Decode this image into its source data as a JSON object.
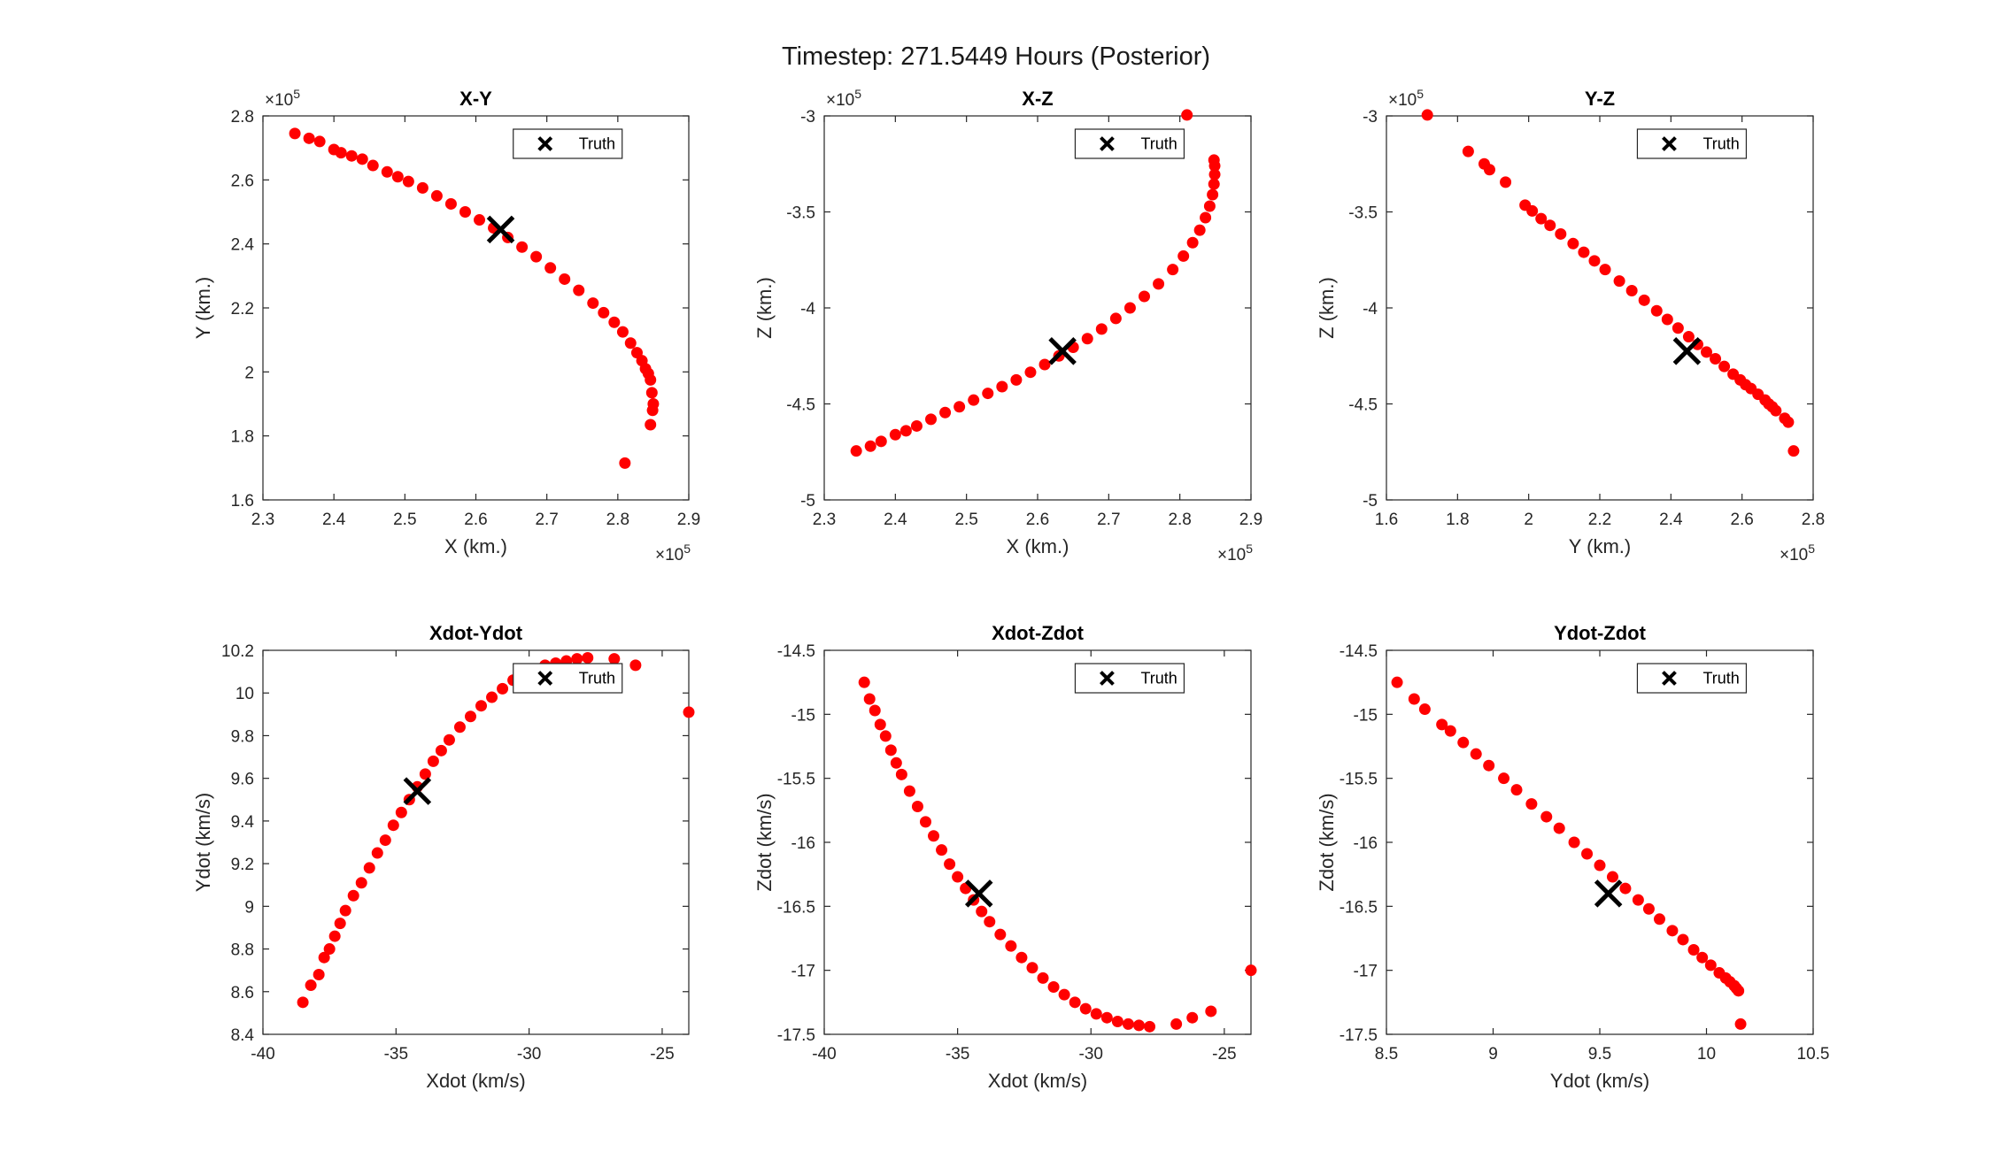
{
  "figure": {
    "title": "Timestep: 271.5449 Hours (Posterior)"
  },
  "colors": {
    "points": "#ff0000",
    "truth": "#000000",
    "axis": "#262626"
  },
  "chart_data": [
    {
      "type": "scatter",
      "title": "X-Y",
      "xlabel": "X (km.)",
      "ylabel": "Y (km.)",
      "xlim": [
        230000,
        290000
      ],
      "ylim": [
        160000,
        280000
      ],
      "xticks": [
        230000,
        240000,
        250000,
        260000,
        270000,
        280000,
        290000
      ],
      "xtick_labels": [
        "2.3",
        "2.4",
        "2.5",
        "2.6",
        "2.7",
        "2.8",
        "2.9"
      ],
      "yticks": [
        160000,
        180000,
        200000,
        220000,
        240000,
        260000,
        280000
      ],
      "ytick_labels": [
        "1.6",
        "1.8",
        "2",
        "2.2",
        "2.4",
        "2.6",
        "2.8"
      ],
      "x_exponent": "×10",
      "x_exponent_power": "5",
      "y_exponent": "×10",
      "y_exponent_power": "5",
      "legend": {
        "label": "Truth",
        "location": "top-right"
      },
      "truth": {
        "x": 263500,
        "y": 244500
      },
      "series": [
        {
          "x": [
            234500,
            236500,
            238000,
            240000,
            241000,
            242500,
            244000,
            245500,
            247500,
            249000,
            250500,
            252500,
            254500,
            256500,
            258500,
            260500,
            262500,
            264500,
            266500,
            268500,
            270500,
            272500,
            274500,
            276500,
            278000,
            279500,
            280700,
            281800,
            282700,
            283400,
            283900,
            284300,
            284600,
            284800,
            285000,
            284900,
            284600,
            281000
          ],
          "y": [
            274500,
            273000,
            272000,
            269500,
            268500,
            267500,
            266500,
            264500,
            262500,
            261000,
            259500,
            257500,
            255000,
            252500,
            250000,
            247500,
            245000,
            242000,
            239000,
            236000,
            232500,
            229000,
            225500,
            221500,
            218500,
            215500,
            212500,
            209000,
            206000,
            203500,
            201000,
            199500,
            197500,
            193500,
            190000,
            188000,
            183500,
            171500
          ]
        }
      ]
    },
    {
      "type": "scatter",
      "title": "X-Z",
      "xlabel": "X (km.)",
      "ylabel": "Z (km.)",
      "xlim": [
        230000,
        290000
      ],
      "ylim": [
        -500000,
        -300000
      ],
      "xticks": [
        230000,
        240000,
        250000,
        260000,
        270000,
        280000,
        290000
      ],
      "xtick_labels": [
        "2.3",
        "2.4",
        "2.5",
        "2.6",
        "2.7",
        "2.8",
        "2.9"
      ],
      "yticks": [
        -500000,
        -450000,
        -400000,
        -350000,
        -300000
      ],
      "ytick_labels": [
        "-5",
        "-4.5",
        "-4",
        "-3.5",
        "-3"
      ],
      "x_exponent": "×10",
      "x_exponent_power": "5",
      "y_exponent": "×10",
      "y_exponent_power": "5",
      "legend": {
        "label": "Truth",
        "location": "top-right"
      },
      "truth": {
        "x": 263500,
        "y": -422500
      },
      "series": [
        {
          "x": [
            234500,
            236500,
            238000,
            240000,
            241500,
            243000,
            245000,
            247000,
            249000,
            251000,
            253000,
            255000,
            257000,
            259000,
            261000,
            263000,
            265000,
            267000,
            269000,
            271000,
            273000,
            275000,
            277000,
            279000,
            280500,
            281800,
            282800,
            283600,
            284200,
            284600,
            284800,
            284900,
            284900,
            284800,
            281000
          ],
          "y": [
            -474500,
            -472000,
            -469500,
            -466000,
            -464000,
            -461500,
            -458000,
            -454500,
            -451500,
            -448000,
            -444500,
            -441000,
            -437500,
            -433500,
            -429500,
            -425000,
            -420500,
            -416000,
            -411000,
            -405500,
            -400000,
            -394000,
            -387500,
            -380000,
            -373000,
            -366000,
            -359500,
            -353000,
            -347000,
            -341000,
            -335500,
            -330500,
            -326000,
            -323000,
            -299500
          ]
        }
      ]
    },
    {
      "type": "scatter",
      "title": "Y-Z",
      "xlabel": "Y (km.)",
      "ylabel": "Z (km.)",
      "xlim": [
        160000,
        280000
      ],
      "ylim": [
        -500000,
        -300000
      ],
      "xticks": [
        160000,
        180000,
        200000,
        220000,
        240000,
        260000,
        280000
      ],
      "xtick_labels": [
        "1.6",
        "1.8",
        "2",
        "2.2",
        "2.4",
        "2.6",
        "2.8"
      ],
      "yticks": [
        -500000,
        -450000,
        -400000,
        -350000,
        -300000
      ],
      "ytick_labels": [
        "-5",
        "-4.5",
        "-4",
        "-3.5",
        "-3"
      ],
      "x_exponent": "×10",
      "x_exponent_power": "5",
      "y_exponent": "×10",
      "y_exponent_power": "5",
      "legend": {
        "label": "Truth",
        "location": "top-right"
      },
      "truth": {
        "x": 244500,
        "y": -422500
      },
      "series": [
        {
          "x": [
            171500,
            183000,
            187500,
            189000,
            193500,
            199000,
            201000,
            203500,
            206000,
            209000,
            212500,
            215500,
            218500,
            221500,
            225500,
            229000,
            232500,
            236000,
            239000,
            242000,
            245000,
            247500,
            250000,
            252500,
            255000,
            257500,
            259500,
            261000,
            262500,
            264500,
            266500,
            267500,
            268500,
            269500,
            272000,
            273000,
            274500
          ],
          "y": [
            -299500,
            -318500,
            -325000,
            -328000,
            -334500,
            -346500,
            -349500,
            -353500,
            -357000,
            -361500,
            -366500,
            -371000,
            -375500,
            -380000,
            -386000,
            -391000,
            -396000,
            -401500,
            -406000,
            -410500,
            -415000,
            -419000,
            -423000,
            -426500,
            -430500,
            -434500,
            -437500,
            -440000,
            -442000,
            -445000,
            -448000,
            -450000,
            -451500,
            -453500,
            -457500,
            -459500,
            -474500
          ]
        }
      ]
    },
    {
      "type": "scatter",
      "title": "Xdot-Ydot",
      "xlabel": "Xdot (km/s)",
      "ylabel": "Ydot (km/s)",
      "xlim": [
        -40,
        -24
      ],
      "ylim": [
        8.4,
        10.2
      ],
      "xticks": [
        -40,
        -35,
        -30,
        -25
      ],
      "xtick_labels": [
        "-40",
        "-35",
        "-30",
        "-25"
      ],
      "yticks": [
        8.4,
        8.6,
        8.8,
        9,
        9.2,
        9.4,
        9.6,
        9.8,
        10,
        10.2
      ],
      "ytick_labels": [
        "8.4",
        "8.6",
        "8.8",
        "9",
        "9.2",
        "9.4",
        "9.6",
        "9.8",
        "10",
        "10.2"
      ],
      "legend": {
        "label": "Truth",
        "location": "top-right"
      },
      "truth": {
        "x": -34.2,
        "y": 9.54
      },
      "series": [
        {
          "x": [
            -38.5,
            -38.2,
            -37.9,
            -37.7,
            -37.5,
            -37.3,
            -37.1,
            -36.9,
            -36.6,
            -36.3,
            -36.0,
            -35.7,
            -35.4,
            -35.1,
            -34.8,
            -34.5,
            -34.2,
            -33.9,
            -33.6,
            -33.3,
            -33.0,
            -32.6,
            -32.2,
            -31.8,
            -31.4,
            -31.0,
            -30.6,
            -30.2,
            -29.8,
            -29.4,
            -29.0,
            -28.6,
            -28.2,
            -27.8,
            -26.8,
            -26.0,
            -24.0
          ],
          "y": [
            8.55,
            8.63,
            8.68,
            8.76,
            8.8,
            8.86,
            8.92,
            8.98,
            9.05,
            9.11,
            9.18,
            9.25,
            9.31,
            9.38,
            9.44,
            9.5,
            9.56,
            9.62,
            9.68,
            9.73,
            9.78,
            9.84,
            9.89,
            9.94,
            9.98,
            10.02,
            10.06,
            10.09,
            10.11,
            10.13,
            10.14,
            10.15,
            10.16,
            10.165,
            10.16,
            10.13,
            9.91
          ]
        }
      ]
    },
    {
      "type": "scatter",
      "title": "Xdot-Zdot",
      "xlabel": "Xdot (km/s)",
      "ylabel": "Zdot (km/s)",
      "xlim": [
        -40,
        -24
      ],
      "ylim": [
        -17.5,
        -14.5
      ],
      "xticks": [
        -40,
        -35,
        -30,
        -25
      ],
      "xtick_labels": [
        "-40",
        "-35",
        "-30",
        "-25"
      ],
      "yticks": [
        -17.5,
        -17,
        -16.5,
        -16,
        -15.5,
        -15,
        -14.5
      ],
      "ytick_labels": [
        "-17.5",
        "-17",
        "-16.5",
        "-16",
        "-15.5",
        "-15",
        "-14.5"
      ],
      "legend": {
        "label": "Truth",
        "location": "top-right"
      },
      "truth": {
        "x": -34.2,
        "y": -16.4
      },
      "series": [
        {
          "x": [
            -38.5,
            -38.3,
            -38.1,
            -37.9,
            -37.7,
            -37.5,
            -37.3,
            -37.1,
            -36.8,
            -36.5,
            -36.2,
            -35.9,
            -35.6,
            -35.3,
            -35.0,
            -34.7,
            -34.4,
            -34.1,
            -33.8,
            -33.4,
            -33.0,
            -32.6,
            -32.2,
            -31.8,
            -31.4,
            -31.0,
            -30.6,
            -30.2,
            -29.8,
            -29.4,
            -29.0,
            -28.6,
            -28.2,
            -27.8,
            -26.8,
            -26.2,
            -25.5,
            -24.0
          ],
          "y": [
            -14.75,
            -14.88,
            -14.97,
            -15.08,
            -15.17,
            -15.28,
            -15.38,
            -15.47,
            -15.6,
            -15.72,
            -15.84,
            -15.95,
            -16.06,
            -16.17,
            -16.27,
            -16.36,
            -16.45,
            -16.54,
            -16.62,
            -16.72,
            -16.81,
            -16.9,
            -16.98,
            -17.06,
            -17.13,
            -17.19,
            -17.25,
            -17.3,
            -17.34,
            -17.37,
            -17.4,
            -17.42,
            -17.43,
            -17.44,
            -17.42,
            -17.37,
            -17.32,
            -17.0
          ]
        }
      ]
    },
    {
      "type": "scatter",
      "title": "Ydot-Zdot",
      "xlabel": "Ydot (km/s)",
      "ylabel": "Zdot (km/s)",
      "xlim": [
        8.5,
        10.5
      ],
      "ylim": [
        -17.5,
        -14.5
      ],
      "xticks": [
        8.5,
        9,
        9.5,
        10,
        10.5
      ],
      "xtick_labels": [
        "8.5",
        "9",
        "9.5",
        "10",
        "10.5"
      ],
      "yticks": [
        -17.5,
        -17,
        -16.5,
        -16,
        -15.5,
        -15,
        -14.5
      ],
      "ytick_labels": [
        "-17.5",
        "-17",
        "-16.5",
        "-16",
        "-15.5",
        "-15",
        "-14.5"
      ],
      "legend": {
        "label": "Truth",
        "location": "top-right"
      },
      "truth": {
        "x": 9.54,
        "y": -16.4
      },
      "series": [
        {
          "x": [
            8.55,
            8.63,
            8.68,
            8.76,
            8.8,
            8.86,
            8.92,
            8.98,
            9.05,
            9.11,
            9.18,
            9.25,
            9.31,
            9.38,
            9.44,
            9.5,
            9.56,
            9.62,
            9.68,
            9.73,
            9.78,
            9.84,
            9.89,
            9.94,
            9.98,
            10.02,
            10.06,
            10.09,
            10.11,
            10.13,
            10.14,
            10.15,
            10.16
          ],
          "y": [
            -14.75,
            -14.88,
            -14.96,
            -15.08,
            -15.13,
            -15.22,
            -15.31,
            -15.4,
            -15.5,
            -15.59,
            -15.7,
            -15.8,
            -15.89,
            -16.0,
            -16.09,
            -16.18,
            -16.27,
            -16.36,
            -16.45,
            -16.52,
            -16.6,
            -16.69,
            -16.76,
            -16.84,
            -16.9,
            -16.96,
            -17.02,
            -17.06,
            -17.09,
            -17.12,
            -17.14,
            -17.16,
            -17.42
          ]
        }
      ]
    }
  ]
}
